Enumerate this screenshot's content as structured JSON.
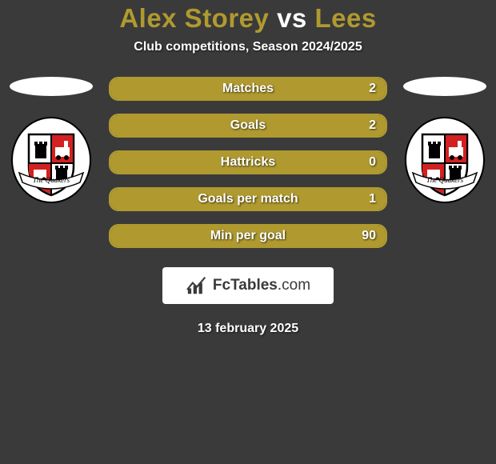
{
  "title": {
    "player_a": "Alex Storey",
    "vs": "vs",
    "player_b": "Lees",
    "color_a": "#b09a2f",
    "color_vs": "#ffffff",
    "color_b": "#b09a2f"
  },
  "subtitle": "Club competitions, Season 2024/2025",
  "accent_color": "#b09a2f",
  "bg_color": "#3a3a3a",
  "stats": [
    {
      "label": "Matches",
      "value": "2",
      "fill_pct": 100
    },
    {
      "label": "Goals",
      "value": "2",
      "fill_pct": 100
    },
    {
      "label": "Hattricks",
      "value": "0",
      "fill_pct": 100
    },
    {
      "label": "Goals per match",
      "value": "1",
      "fill_pct": 100
    },
    {
      "label": "Min per goal",
      "value": "90",
      "fill_pct": 100
    }
  ],
  "crest": {
    "banner_text": "The Quakers",
    "shield_fill": "#ffffff",
    "shield_border": "#000000",
    "banner_fill": "#ffffff",
    "accent_red": "#d32020"
  },
  "brand": {
    "name_strong": "FcTables",
    "name_light": ".com"
  },
  "date": "13 february 2025"
}
